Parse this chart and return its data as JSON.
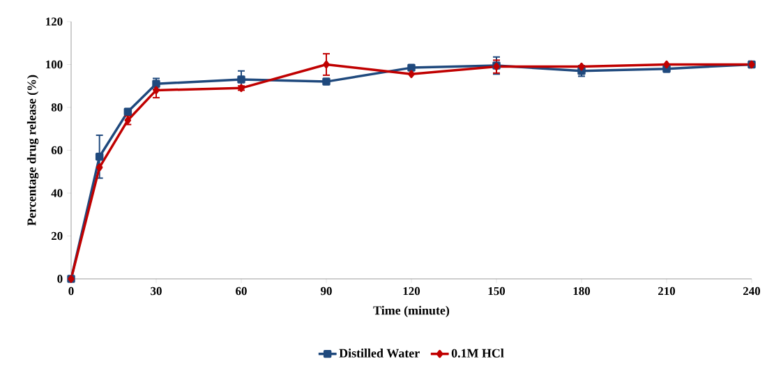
{
  "chart_data": {
    "type": "line",
    "xlabel": "Time (minute)",
    "ylabel": "Percentage drug release (%)",
    "x": [
      0,
      10,
      20,
      30,
      60,
      90,
      120,
      150,
      180,
      210,
      240
    ],
    "series": [
      {
        "name": "Distilled Water",
        "color": "#1f497d",
        "marker": "square",
        "values": [
          0,
          57,
          78,
          91,
          93,
          92,
          98.5,
          99.5,
          97,
          98,
          100
        ],
        "errors": [
          null,
          10,
          1,
          2.5,
          4,
          null,
          1,
          4,
          2.5,
          1.5,
          1.5
        ]
      },
      {
        "name": "0.1M HCl",
        "color": "#c00000",
        "marker": "diamond",
        "values": [
          0,
          52,
          74,
          88,
          89,
          100,
          95.5,
          99,
          99,
          100,
          100
        ],
        "errors": [
          null,
          null,
          2,
          3.5,
          1,
          5,
          null,
          3,
          null,
          null,
          1.5
        ]
      }
    ],
    "xlim": [
      0,
      240
    ],
    "xticks": [
      0,
      30,
      60,
      90,
      120,
      150,
      180,
      210,
      240
    ],
    "ylim": [
      0,
      120
    ],
    "yticks": [
      0,
      20,
      40,
      60,
      80,
      100,
      120
    ],
    "grid": false,
    "legend": "bottom",
    "line_style": "solid"
  }
}
